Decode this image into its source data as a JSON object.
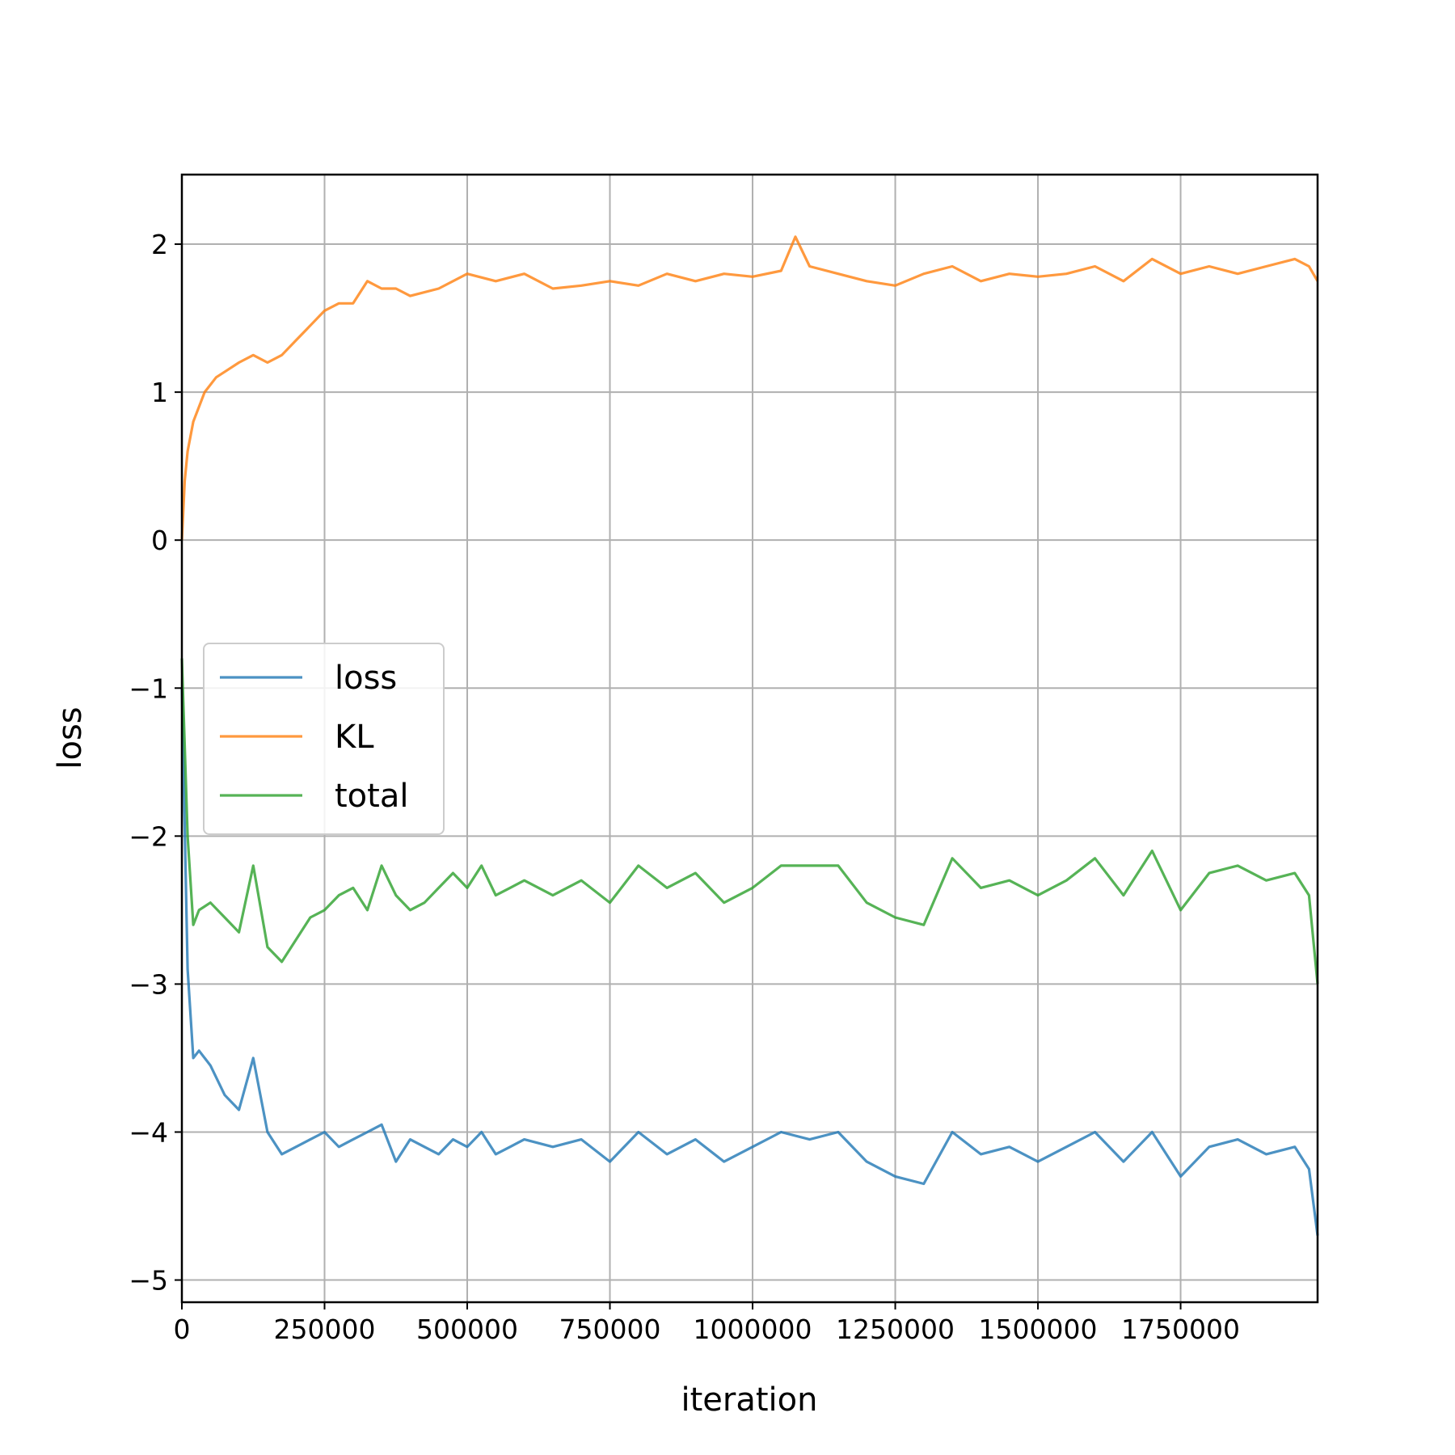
{
  "chart_data": {
    "type": "line",
    "title": "",
    "xlabel": "iteration",
    "ylabel": "loss",
    "xlim": [
      0,
      1990000
    ],
    "ylim": [
      -5.15,
      2.47
    ],
    "grid": true,
    "legend_position": "center-left",
    "x_ticks": [
      0,
      250000,
      500000,
      750000,
      1000000,
      1250000,
      1500000,
      1750000
    ],
    "x_tick_labels": [
      "0",
      "250000",
      "500000",
      "750000",
      "1000000",
      "1250000",
      "1500000",
      "1750000"
    ],
    "y_ticks": [
      2,
      1,
      0,
      -1,
      -2,
      -3,
      -4,
      -5
    ],
    "y_tick_labels": [
      "2",
      "1",
      "0",
      "−1",
      "−2",
      "−3",
      "−4",
      "−5"
    ],
    "series": [
      {
        "name": "loss",
        "color": "#1f77b4",
        "x": [
          0,
          10000,
          20000,
          30000,
          50000,
          75000,
          100000,
          125000,
          150000,
          175000,
          200000,
          225000,
          250000,
          275000,
          300000,
          325000,
          350000,
          375000,
          400000,
          425000,
          450000,
          475000,
          500000,
          525000,
          550000,
          575000,
          600000,
          650000,
          700000,
          750000,
          800000,
          850000,
          900000,
          950000,
          1000000,
          1050000,
          1100000,
          1150000,
          1200000,
          1250000,
          1300000,
          1350000,
          1400000,
          1450000,
          1500000,
          1550000,
          1600000,
          1650000,
          1700000,
          1750000,
          1800000,
          1850000,
          1900000,
          1950000,
          1975000,
          1990000
        ],
        "y": [
          -1.0,
          -2.9,
          -3.5,
          -3.45,
          -3.55,
          -3.75,
          -3.85,
          -3.5,
          -4.0,
          -4.15,
          -4.1,
          -4.05,
          -4.0,
          -4.1,
          -4.05,
          -4.0,
          -3.95,
          -4.2,
          -4.05,
          -4.1,
          -4.15,
          -4.05,
          -4.1,
          -4.0,
          -4.15,
          -4.1,
          -4.05,
          -4.1,
          -4.05,
          -4.2,
          -4.0,
          -4.15,
          -4.05,
          -4.2,
          -4.1,
          -4.0,
          -4.05,
          -4.0,
          -4.2,
          -4.3,
          -4.35,
          -4.0,
          -4.15,
          -4.1,
          -4.2,
          -4.1,
          -4.0,
          -4.2,
          -4.0,
          -4.3,
          -4.1,
          -4.05,
          -4.15,
          -4.1,
          -4.25,
          -4.7
        ]
      },
      {
        "name": "KL",
        "color": "#ff7f0e",
        "x": [
          0,
          5000,
          10000,
          20000,
          40000,
          60000,
          80000,
          100000,
          125000,
          150000,
          175000,
          200000,
          225000,
          250000,
          275000,
          300000,
          325000,
          350000,
          375000,
          400000,
          450000,
          500000,
          550000,
          600000,
          650000,
          700000,
          750000,
          800000,
          850000,
          900000,
          950000,
          1000000,
          1050000,
          1075000,
          1100000,
          1150000,
          1200000,
          1250000,
          1300000,
          1350000,
          1400000,
          1450000,
          1500000,
          1550000,
          1600000,
          1650000,
          1700000,
          1750000,
          1800000,
          1850000,
          1900000,
          1950000,
          1975000,
          1990000
        ],
        "y": [
          0.0,
          0.4,
          0.6,
          0.8,
          1.0,
          1.1,
          1.15,
          1.2,
          1.25,
          1.2,
          1.25,
          1.35,
          1.45,
          1.55,
          1.6,
          1.6,
          1.75,
          1.7,
          1.7,
          1.65,
          1.7,
          1.8,
          1.75,
          1.8,
          1.7,
          1.72,
          1.75,
          1.72,
          1.8,
          1.75,
          1.8,
          1.78,
          1.82,
          2.05,
          1.85,
          1.8,
          1.75,
          1.72,
          1.8,
          1.85,
          1.75,
          1.8,
          1.78,
          1.8,
          1.85,
          1.75,
          1.9,
          1.8,
          1.85,
          1.8,
          1.85,
          1.9,
          1.85,
          1.75
        ]
      },
      {
        "name": "total",
        "color": "#2ca02c",
        "x": [
          0,
          10000,
          20000,
          30000,
          50000,
          75000,
          100000,
          125000,
          150000,
          175000,
          200000,
          225000,
          250000,
          275000,
          300000,
          325000,
          350000,
          375000,
          400000,
          425000,
          450000,
          475000,
          500000,
          525000,
          550000,
          575000,
          600000,
          650000,
          700000,
          750000,
          800000,
          850000,
          900000,
          950000,
          1000000,
          1050000,
          1100000,
          1150000,
          1200000,
          1250000,
          1300000,
          1350000,
          1400000,
          1450000,
          1500000,
          1550000,
          1600000,
          1650000,
          1700000,
          1750000,
          1800000,
          1850000,
          1900000,
          1950000,
          1975000,
          1990000
        ],
        "y": [
          -0.8,
          -2.0,
          -2.6,
          -2.5,
          -2.45,
          -2.55,
          -2.65,
          -2.2,
          -2.75,
          -2.85,
          -2.7,
          -2.55,
          -2.5,
          -2.4,
          -2.35,
          -2.5,
          -2.2,
          -2.4,
          -2.5,
          -2.45,
          -2.35,
          -2.25,
          -2.35,
          -2.2,
          -2.4,
          -2.35,
          -2.3,
          -2.4,
          -2.3,
          -2.45,
          -2.2,
          -2.35,
          -2.25,
          -2.45,
          -2.35,
          -2.2,
          -2.2,
          -2.2,
          -2.45,
          -2.55,
          -2.6,
          -2.15,
          -2.35,
          -2.3,
          -2.4,
          -2.3,
          -2.15,
          -2.4,
          -2.1,
          -2.5,
          -2.25,
          -2.2,
          -2.3,
          -2.25,
          -2.4,
          -3.0
        ]
      }
    ]
  }
}
